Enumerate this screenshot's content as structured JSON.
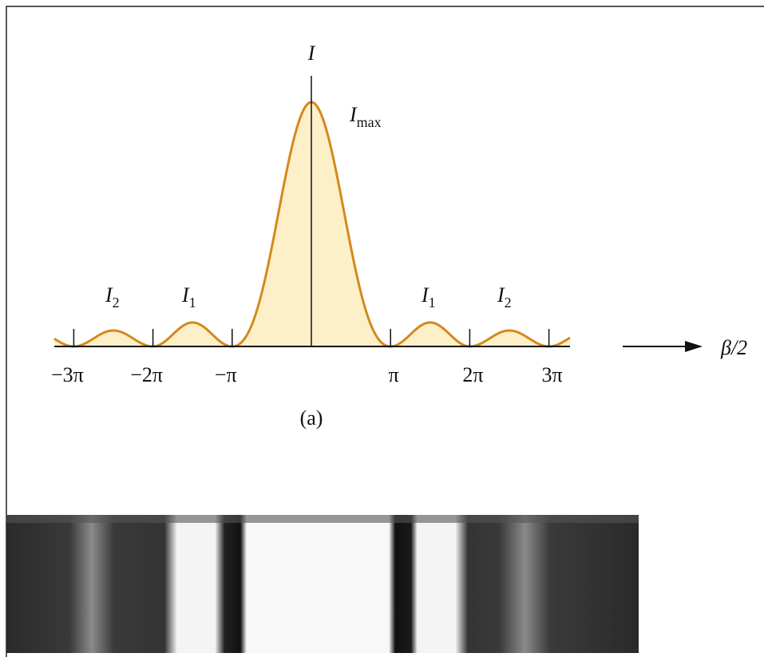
{
  "axis_labels": {
    "vertical": "I",
    "horizontal": "β/2"
  },
  "tick_labels": [
    "−3π",
    "−2π",
    "−π",
    "π",
    "2π",
    "3π"
  ],
  "peak_labels": [
    {
      "symbol": "I",
      "subscript": "max"
    },
    {
      "symbol": "I",
      "subscript": "2"
    },
    {
      "symbol": "I",
      "subscript": "1"
    },
    {
      "symbol": "I",
      "subscript": "1"
    },
    {
      "symbol": "I",
      "subscript": "2"
    }
  ],
  "caption": "(a)"
}
